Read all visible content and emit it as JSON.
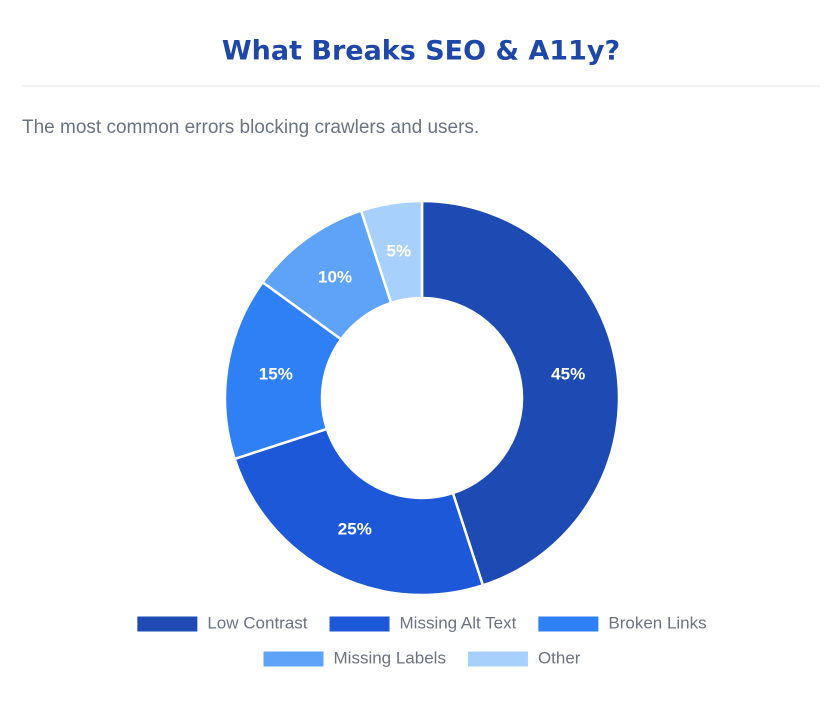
{
  "chart_data": {
    "type": "donut",
    "title": "What Breaks SEO & A11y?",
    "subtitle": "The most common errors blocking crawlers and users.",
    "categories": [
      "Low Contrast",
      "Missing Alt Text",
      "Broken Links",
      "Missing Labels",
      "Other"
    ],
    "values": [
      45,
      25,
      15,
      10,
      5
    ],
    "value_labels": [
      "45%",
      "25%",
      "15%",
      "10%",
      "5%"
    ],
    "colors": [
      "#1e4bb3",
      "#1d58d8",
      "#2f80f5",
      "#5ea3f7",
      "#a7d0fc"
    ],
    "legend": "bottom"
  }
}
